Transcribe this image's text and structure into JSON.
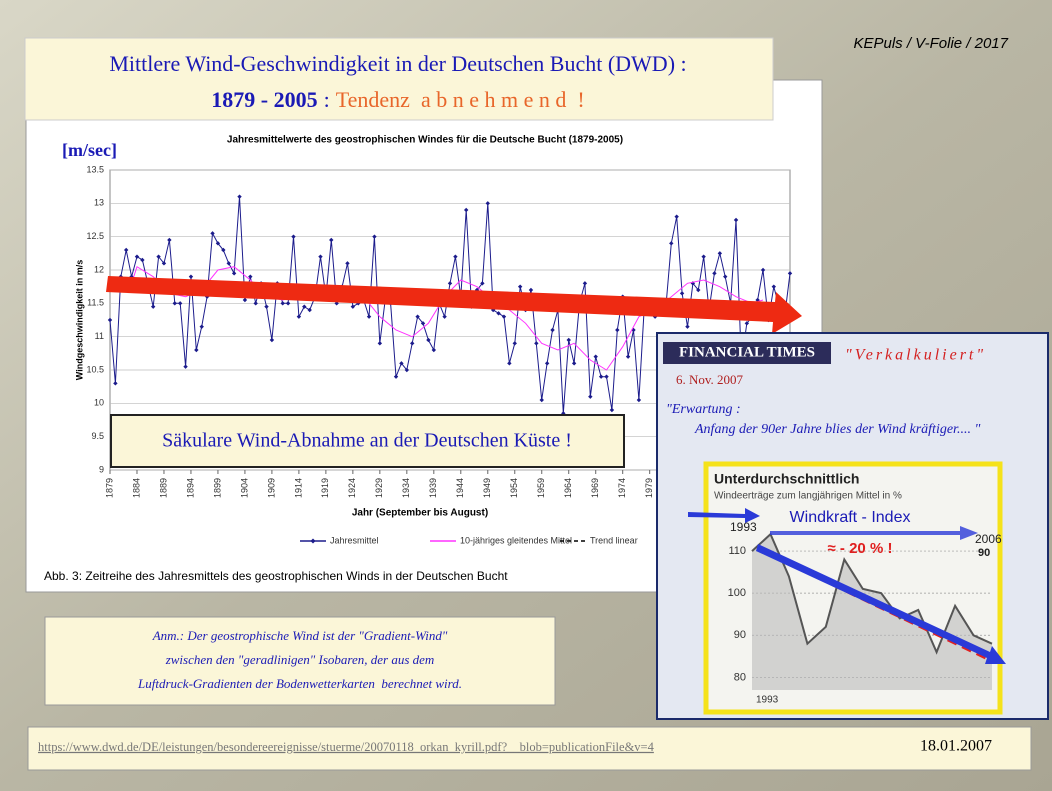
{
  "slide": {
    "tag": "KEPuls / V-Folie / 2017",
    "title_line1": "Mittlere Wind-Geschwindigkeit in der Deutschen Bucht (DWD) :",
    "title_years": "1879 - 2005",
    "title_sep": ":",
    "title_trend": "Tendenz  a b n e h m e n d  !",
    "unit": "[m/sec]",
    "caption": "Abb. 3: Zeitreihe des Jahresmittels des geostrophischen Winds in der Deutschen Bucht",
    "box": "Säkulare Wind-Abnahme an der Deutschen Küste !",
    "ft_logo": "FINANCIAL TIMES",
    "ft_quote": "\"Verkalkuliert\"",
    "ft_date": "6. Nov. 2007",
    "ft_expect1": "\"Erwartung :",
    "ft_expect2": "Anfang der 90er Jahre blies der Wind kräftiger.... \"",
    "note": [
      "Anm.: Der geostrophische Wind ist der \"Gradient-Wind\"",
      "zwischen den \"geradlinigen\" Isobaren, der aus dem",
      "Luftdruck-Gradienten der Bodenwetterkarten  berechnet wird."
    ],
    "url": "https://www.dwd.de/DE/leistungen/besondereereignisse/stuerme/20070118_orkan_kyrill.pdf?__blob=publicationFile&v=4",
    "date": "18.01.2007"
  },
  "chart_data": [
    {
      "type": "line",
      "title": "Jahresmittelwerte des geostrophischen Windes für die Deutsche Bucht (1879-2005)",
      "x_label": "Jahr (September bis August)",
      "y_label": "Windgeschwindigkeit in m/s",
      "xlim": [
        1879,
        2005
      ],
      "ylim": [
        9,
        13.5
      ],
      "yticks": [
        9,
        9.5,
        10,
        10.5,
        11,
        11.5,
        12,
        12.5,
        13,
        13.5
      ],
      "xticks": [
        1879,
        1884,
        1889,
        1894,
        1899,
        1904,
        1909,
        1914,
        1919,
        1924,
        1929,
        1934,
        1939,
        1944,
        1949,
        1954,
        1959,
        1964,
        1969,
        1974,
        1979
      ],
      "grid": true,
      "series": [
        {
          "name": "Jahresmittel",
          "color": "#1c1c8c",
          "marker": "diamond",
          "x": [
            1879,
            1880,
            1881,
            1882,
            1883,
            1884,
            1885,
            1886,
            1887,
            1888,
            1889,
            1890,
            1891,
            1892,
            1893,
            1894,
            1895,
            1896,
            1897,
            1898,
            1899,
            1900,
            1901,
            1902,
            1903,
            1904,
            1905,
            1906,
            1907,
            1908,
            1909,
            1910,
            1911,
            1912,
            1913,
            1914,
            1915,
            1916,
            1917,
            1918,
            1919,
            1920,
            1921,
            1922,
            1923,
            1924,
            1925,
            1926,
            1927,
            1928,
            1929,
            1930,
            1931,
            1932,
            1933,
            1934,
            1935,
            1936,
            1937,
            1938,
            1939,
            1940,
            1941,
            1942,
            1943,
            1944,
            1945,
            1946,
            1947,
            1948,
            1949,
            1950,
            1951,
            1952,
            1953,
            1954,
            1955,
            1956,
            1957,
            1958,
            1959,
            1960,
            1961,
            1962,
            1963,
            1964,
            1965,
            1966,
            1967,
            1968,
            1969,
            1970,
            1971,
            1972,
            1973,
            1974,
            1975,
            1976,
            1977,
            1978,
            1979,
            1980,
            1981,
            1982,
            1983,
            1984,
            1985,
            1986,
            1987,
            1988,
            1989,
            1990,
            1991,
            1992,
            1993,
            1994,
            1995,
            1996,
            1997,
            1998,
            1999,
            2000,
            2001,
            2002,
            2003,
            2004,
            2005
          ],
          "values": [
            11.25,
            10.3,
            11.9,
            12.3,
            11.9,
            12.2,
            12.15,
            11.8,
            11.45,
            12.2,
            12.1,
            12.45,
            11.5,
            11.5,
            10.55,
            11.9,
            10.8,
            11.15,
            11.6,
            12.55,
            12.4,
            12.3,
            12.1,
            11.95,
            13.1,
            11.55,
            11.9,
            11.5,
            11.8,
            11.45,
            10.95,
            11.8,
            11.5,
            11.5,
            12.5,
            11.3,
            11.45,
            11.4,
            11.6,
            12.2,
            11.6,
            12.45,
            11.5,
            11.75,
            12.1,
            11.45,
            11.5,
            11.55,
            11.3,
            12.5,
            10.9,
            11.55,
            11.5,
            10.4,
            10.6,
            10.5,
            10.9,
            11.3,
            11.2,
            10.95,
            10.8,
            11.5,
            11.3,
            11.8,
            12.2,
            11.6,
            12.9,
            11.45,
            11.7,
            11.8,
            13.0,
            11.4,
            11.35,
            11.3,
            10.6,
            10.9,
            11.75,
            11.4,
            11.7,
            10.9,
            10.05,
            10.6,
            11.1,
            11.4,
            9.85,
            10.95,
            10.6,
            11.5,
            11.8,
            10.1,
            10.7,
            10.4,
            10.4,
            9.9,
            11.1,
            11.6,
            10.7,
            11.1,
            10.05,
            11.45,
            11.5,
            11.3,
            11.5,
            11.45,
            12.4,
            12.8,
            11.65,
            11.15,
            11.8,
            11.7,
            12.2,
            11.4,
            11.95,
            12.25,
            11.9,
            11.5,
            12.75,
            10.6,
            11.2,
            11.3,
            11.55,
            12.0,
            11.25,
            11.75,
            11.45,
            11.3,
            11.95
          ]
        },
        {
          "name": "10-jähriges gleitendes Mittel",
          "color": "#ff33ff",
          "x": [
            1883,
            1884,
            1887,
            1890,
            1893,
            1896,
            1899,
            1902,
            1905,
            1908,
            1911,
            1914,
            1917,
            1920,
            1923,
            1926,
            1929,
            1932,
            1935,
            1938,
            1941,
            1944,
            1947,
            1950,
            1953,
            1956,
            1959,
            1962,
            1965,
            1968,
            1971,
            1974,
            1977,
            1980,
            1983,
            1986,
            1989,
            1992,
            1995,
            1998,
            2000
          ],
          "values": [
            11.8,
            12.05,
            11.9,
            11.65,
            11.6,
            11.7,
            12.0,
            12.05,
            11.85,
            11.6,
            11.55,
            11.6,
            11.7,
            11.75,
            11.7,
            11.6,
            11.3,
            11.1,
            11.0,
            11.2,
            11.6,
            11.85,
            11.75,
            11.55,
            11.4,
            11.2,
            10.9,
            10.8,
            10.9,
            10.65,
            10.5,
            10.85,
            11.3,
            11.4,
            11.6,
            11.8,
            11.85,
            11.75,
            11.6,
            11.5,
            11.55
          ]
        },
        {
          "name": "Trend linear",
          "color": "#000000",
          "style": "dashed",
          "x": [
            1879,
            2005
          ],
          "values": [
            11.78,
            11.35
          ]
        }
      ]
    },
    {
      "type": "line",
      "title": "Unterdurchschnittlich",
      "subtitle": "Windeerträge zum langjährigen Mittel in %",
      "xlim": [
        1993,
        2006
      ],
      "ylim": [
        77,
        115
      ],
      "yticks": [
        80,
        90,
        100,
        110
      ],
      "grid": true,
      "annotations": [
        "1993",
        "Windkraft - Index",
        "2006",
        "90",
        "≈ - 20 % !",
        "1993"
      ],
      "series": [
        {
          "color": "#555555",
          "area": true,
          "x": [
            1993,
            1994,
            1995,
            1996,
            1997,
            1998,
            1999,
            2000,
            2001,
            2002,
            2003,
            2004,
            2005,
            2006
          ],
          "values": [
            110,
            114,
            104,
            88,
            92,
            108,
            101,
            100,
            94,
            96,
            86,
            97,
            90,
            88
          ]
        }
      ]
    }
  ]
}
